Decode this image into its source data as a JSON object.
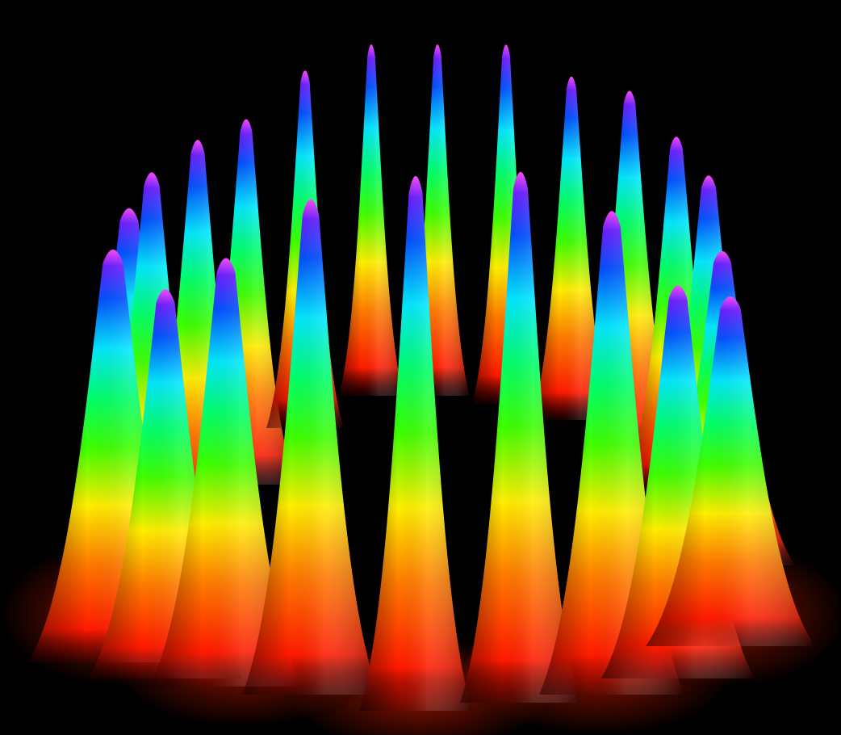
{
  "image": {
    "subject": "ring-of-peaks-icon",
    "background_color": "#000000",
    "colormap": [
      "#8a0000",
      "#ff1a00",
      "#ff7a00",
      "#ffee00",
      "#7dff00",
      "#00ff3c",
      "#00e8ff",
      "#0050ff",
      "#6a1cff",
      "#ff44ff"
    ],
    "peaks": [
      {
        "row": "back",
        "count": 13
      },
      {
        "row": "front",
        "count": 9
      }
    ]
  }
}
